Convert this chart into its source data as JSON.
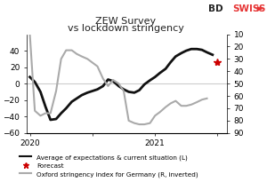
{
  "title_line1": "ZEW Survey",
  "title_line2": "vs lockdown stringency",
  "title_color": "#222222",
  "background_color": "#ffffff",
  "grid_color": "#cccccc",
  "left_ylim": [
    -60,
    60
  ],
  "left_yticks": [
    -60,
    -40,
    -20,
    0,
    20,
    40
  ],
  "right_yticks": [
    10,
    20,
    30,
    40,
    50,
    60,
    70,
    80,
    90
  ],
  "zew_x": [
    0.0,
    0.08,
    0.17,
    0.25,
    0.33,
    0.42,
    0.5,
    0.58,
    0.67,
    0.75,
    0.83,
    0.92,
    1.0,
    1.08,
    1.17,
    1.25,
    1.33,
    1.42,
    1.5,
    1.58,
    1.67,
    1.75,
    1.83,
    1.92,
    2.0,
    2.08,
    2.17,
    2.25,
    2.33,
    2.42,
    2.5,
    2.58,
    2.67,
    2.75,
    2.83,
    2.92
  ],
  "zew_y": [
    8,
    2,
    -10,
    -28,
    -44,
    -43,
    -36,
    -30,
    -22,
    -18,
    -14,
    -11,
    -9,
    -7,
    -3,
    5,
    3,
    -3,
    -7,
    -10,
    -11,
    -8,
    -1,
    4,
    8,
    13,
    18,
    26,
    33,
    37,
    40,
    42,
    42,
    41,
    38,
    35
  ],
  "zew_color": "#111111",
  "zew_linewidth": 2.0,
  "forecast_x": [
    3.0
  ],
  "forecast_y": [
    26
  ],
  "forecast_color": "#cc0000",
  "forecast_markersize": 6,
  "oxford_x": [
    0.0,
    0.08,
    0.17,
    0.25,
    0.33,
    0.42,
    0.5,
    0.58,
    0.67,
    0.75,
    0.83,
    0.92,
    1.0,
    1.08,
    1.17,
    1.25,
    1.33,
    1.42,
    1.5,
    1.58,
    1.67,
    1.75,
    1.83,
    1.92,
    2.0,
    2.08,
    2.17,
    2.25,
    2.33,
    2.42,
    2.5,
    2.58,
    2.67,
    2.75,
    2.83
  ],
  "oxford_y_inverted": [
    10,
    72,
    76,
    74,
    74,
    56,
    30,
    23,
    23,
    26,
    28,
    30,
    33,
    36,
    46,
    52,
    47,
    50,
    56,
    80,
    82,
    83,
    83,
    82,
    76,
    73,
    69,
    66,
    64,
    68,
    68,
    67,
    65,
    63,
    62
  ],
  "oxford_color": "#aaaaaa",
  "oxford_linewidth": 1.5,
  "xlim": [
    -0.05,
    3.15
  ],
  "xticks": [
    0,
    1,
    2,
    3
  ],
  "xticklabels": [
    "2020",
    "",
    "2021",
    ""
  ],
  "legend_zew_label": "Average of expectations & current situation (L)",
  "legend_forecast_label": "Forecast",
  "legend_oxford_label": "Oxford stringency index for Germany (R, inverted)",
  "bdswiss_color_bd": "#222222",
  "bdswiss_color_swiss": "#e63333"
}
